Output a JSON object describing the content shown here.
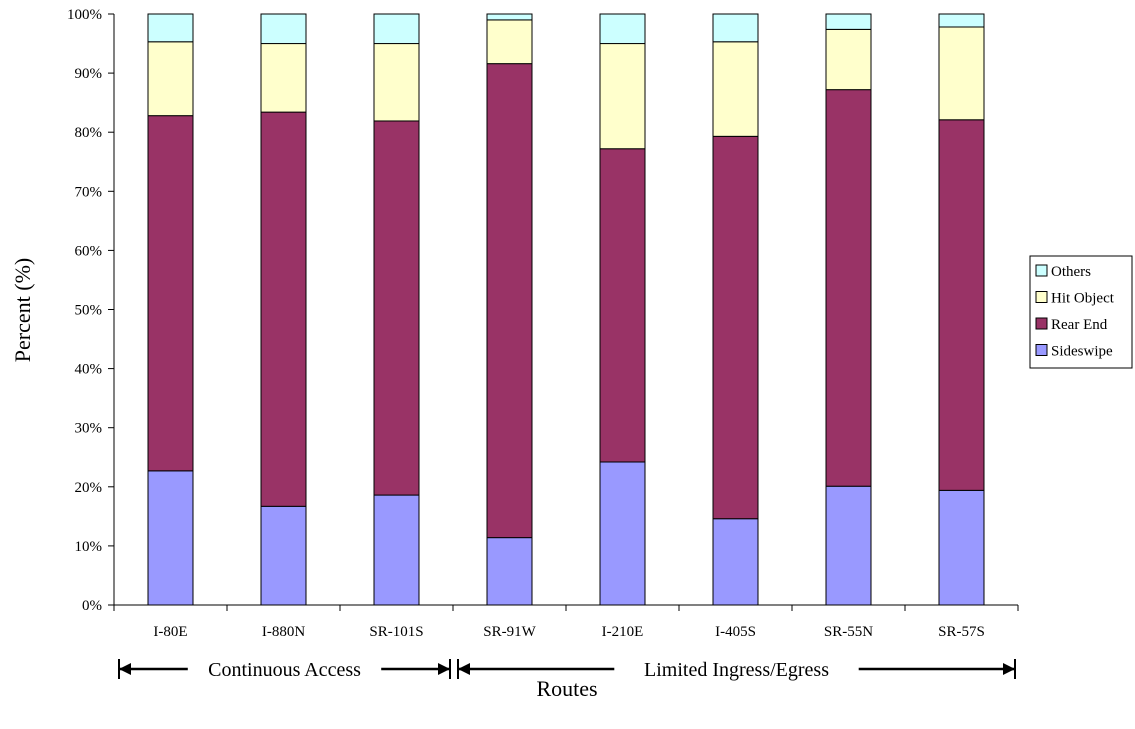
{
  "chart_data": {
    "type": "bar",
    "stacked": true,
    "stack_mode": "percent",
    "categories": [
      "I-80E",
      "I-880N",
      "SR-101S",
      "SR-91W",
      "I-210E",
      "I-405S",
      "SR-55N",
      "SR-57S"
    ],
    "series": [
      {
        "name": "Sideswipe",
        "color": "#9999ff",
        "values": [
          22.7,
          16.7,
          18.6,
          11.4,
          24.2,
          14.6,
          20.1,
          19.4
        ]
      },
      {
        "name": "Rear End",
        "color": "#993366",
        "values": [
          60.1,
          66.7,
          63.3,
          80.2,
          53.0,
          64.7,
          67.1,
          62.7
        ]
      },
      {
        "name": "Hit Object",
        "color": "#ffffcc",
        "values": [
          12.5,
          11.6,
          13.1,
          7.4,
          17.8,
          16.0,
          10.2,
          15.7
        ]
      },
      {
        "name": "Others",
        "color": "#ccffff",
        "values": [
          4.7,
          5.0,
          5.0,
          1.0,
          5.0,
          4.7,
          2.6,
          2.2
        ]
      }
    ],
    "xlabel": "Routes",
    "ylabel": "Percent (%)",
    "ylim": [
      0,
      100
    ],
    "yticks": [
      "0%",
      "10%",
      "20%",
      "30%",
      "40%",
      "50%",
      "60%",
      "70%",
      "80%",
      "90%",
      "100%"
    ],
    "grid": false,
    "legend_position": "right",
    "groups": [
      {
        "label": "Continuous Access",
        "from": "I-80E",
        "to": "SR-101S"
      },
      {
        "label": "Limited Ingress/Egress",
        "from": "SR-91W",
        "to": "SR-57S"
      }
    ]
  }
}
